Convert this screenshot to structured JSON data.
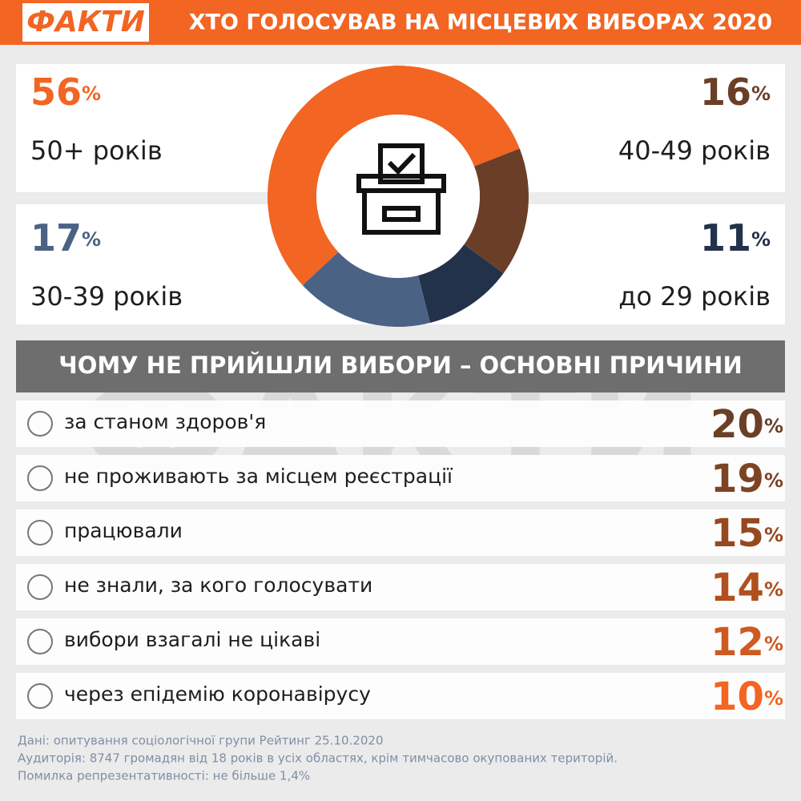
{
  "header": {
    "logo": "ФАКТИ",
    "title": "ХТО ГОЛОСУВАВ НА МІСЦЕВИХ ВИБОРАХ 2020"
  },
  "chart_data": [
    {
      "type": "pie",
      "categories": [
        "50+ років",
        "40-49 років",
        "до 29 років",
        "30-39 років"
      ],
      "values": [
        56,
        16,
        11,
        17
      ],
      "unit": "%",
      "colors": [
        "#f26522",
        "#6b3f27",
        "#22324b",
        "#4a6284"
      ]
    },
    {
      "type": "list",
      "title": "ЧОМУ НЕ ПРИЙШЛИ ВИБОРИ – ОСНОВНІ ПРИЧИНИ",
      "categories": [
        "за станом здоров'я",
        "не проживають за місцем реєстрації",
        "працювали",
        "не знали, за кого голосувати",
        "вибори взагалі не цікаві",
        "через епідемію коронавірусу"
      ],
      "values": [
        20,
        19,
        15,
        14,
        12,
        10
      ],
      "unit": "%",
      "colors": [
        "#6b3f27",
        "#7d4424",
        "#96481f",
        "#b0501f",
        "#cf5a21",
        "#f26522"
      ]
    }
  ],
  "footer": [
    "Дані: опитування соціологічної групи Рейтинг 25.10.2020",
    "Аудиторія: 8747 громадян від 18 років в усіх областях, крім тимчасово окупованих територій.",
    "Помилка репрезентативності: не більше 1,4%"
  ]
}
